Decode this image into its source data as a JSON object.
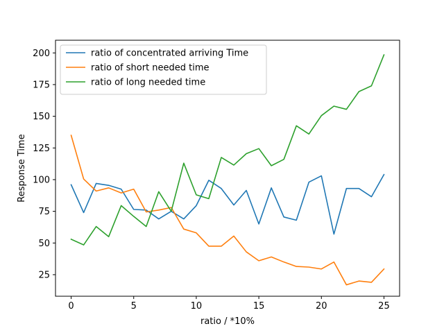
{
  "chart_data": {
    "type": "line",
    "title": "",
    "xlabel": "ratio / *10%",
    "ylabel": "Response Time",
    "xlim": [
      -1.25,
      26.25
    ],
    "ylim": [
      8,
      210
    ],
    "xticks": [
      0,
      5,
      10,
      15,
      20,
      25
    ],
    "yticks": [
      25,
      50,
      75,
      100,
      125,
      150,
      175,
      200
    ],
    "grid": false,
    "legend_position": "upper-left",
    "x": [
      0,
      1,
      2,
      3,
      4,
      5,
      6,
      7,
      8,
      9,
      10,
      11,
      12,
      13,
      14,
      15,
      16,
      17,
      18,
      19,
      20,
      21,
      22,
      23,
      24,
      25
    ],
    "series": [
      {
        "name": "ratio of concentrated arriving Time",
        "color": "#1f77b4",
        "values": [
          96,
          74,
          97,
          95.5,
          92.5,
          76.5,
          76,
          69,
          75,
          69,
          79.5,
          99.5,
          93,
          80,
          91.5,
          65,
          93.5,
          70.5,
          68,
          98,
          103,
          57,
          93,
          93,
          86.5,
          104
        ]
      },
      {
        "name": "ratio of short needed time",
        "color": "#ff7f0e",
        "values": [
          135,
          100.5,
          91,
          93.5,
          89.5,
          92.5,
          74.5,
          76,
          78,
          61,
          58,
          47.5,
          47.5,
          55.5,
          43,
          36,
          39,
          35,
          31.5,
          31,
          29.5,
          35,
          17,
          20,
          19,
          29.5
        ]
      },
      {
        "name": "ratio of long needed time",
        "color": "#2ca02c",
        "values": [
          53,
          48.5,
          63,
          55,
          79.5,
          71,
          63,
          90.5,
          75,
          113,
          88,
          85,
          117.5,
          111.5,
          120.5,
          124.5,
          111,
          116,
          142.5,
          136,
          150.5,
          158,
          155.5,
          169.5,
          174,
          198.5
        ]
      }
    ]
  }
}
